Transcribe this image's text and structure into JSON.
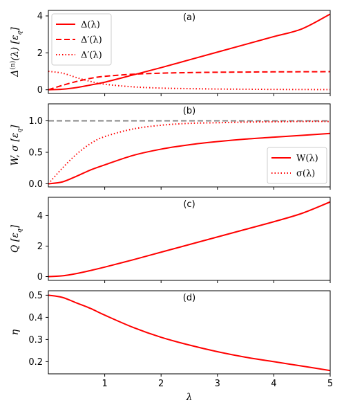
{
  "chart_data": [
    {
      "type": "line",
      "panel_label": "(a)",
      "ylabel": "Δ^(n)(λ) [ε_q]",
      "ylabel_parts": {
        "main": "Δ",
        "sup": "(n)",
        "arg": "(λ) [ε",
        "sub": "q",
        "close": "]"
      },
      "xlim": [
        0,
        5
      ],
      "ylim": [
        -0.2,
        4.3
      ],
      "yticks": [
        0,
        2,
        4
      ],
      "yticklabels": [
        "0",
        "2",
        "4"
      ],
      "grid": false,
      "legend": {
        "placement": "top-left"
      },
      "series": [
        {
          "name": "Δ(λ)",
          "style": "solid",
          "color": "#ff0000",
          "x": [
            0,
            0.25,
            0.5,
            0.75,
            1,
            1.5,
            2,
            2.5,
            3,
            3.5,
            4,
            4.5,
            5
          ],
          "y": [
            0,
            0.03,
            0.12,
            0.26,
            0.41,
            0.8,
            1.2,
            1.62,
            2.04,
            2.46,
            2.88,
            3.3,
            4.1
          ]
        },
        {
          "name": "Δ′(λ)",
          "style": "dashed",
          "color": "#ff0000",
          "x": [
            0,
            0.25,
            0.5,
            0.75,
            1,
            1.5,
            2,
            2.5,
            3,
            3.5,
            4,
            4.5,
            5
          ],
          "y": [
            0,
            0.24,
            0.45,
            0.62,
            0.73,
            0.84,
            0.9,
            0.93,
            0.95,
            0.96,
            0.97,
            0.975,
            0.98
          ]
        },
        {
          "name": "Δ′(λ)",
          "style": "dotted",
          "color": "#ff0000",
          "x": [
            0,
            0.25,
            0.5,
            0.75,
            1,
            1.5,
            2,
            2.5,
            3,
            3.5,
            4,
            4.5,
            5
          ],
          "y": [
            1.0,
            0.9,
            0.66,
            0.45,
            0.3,
            0.16,
            0.09,
            0.06,
            0.04,
            0.03,
            0.02,
            0.015,
            0.01
          ]
        }
      ]
    },
    {
      "type": "line",
      "panel_label": "(b)",
      "ylabel": "W, σ [ε_q]",
      "ylabel_parts": {
        "main": "W, σ [ε",
        "sub": "q",
        "close": "]"
      },
      "xlim": [
        0,
        5
      ],
      "ylim": [
        -0.05,
        1.27
      ],
      "yticks": [
        0,
        0.5,
        1.0
      ],
      "yticklabels": [
        "0.0",
        "0.5",
        "1.0"
      ],
      "grid": false,
      "legend": {
        "placement": "bottom-right"
      },
      "reference_line": {
        "y": 1.0,
        "style": "dashed",
        "color": "#808080"
      },
      "series": [
        {
          "name": "W(λ)",
          "style": "solid",
          "color": "#ff0000",
          "x": [
            0,
            0.25,
            0.5,
            0.75,
            1,
            1.5,
            2,
            2.5,
            3,
            3.5,
            4,
            4.5,
            5
          ],
          "y": [
            0,
            0.03,
            0.12,
            0.22,
            0.3,
            0.45,
            0.55,
            0.62,
            0.67,
            0.71,
            0.74,
            0.77,
            0.8
          ]
        },
        {
          "name": "σ(λ)",
          "style": "dotted",
          "color": "#ff0000",
          "x": [
            0,
            0.25,
            0.5,
            0.75,
            1,
            1.5,
            2,
            2.5,
            3,
            3.5,
            4,
            4.5,
            5
          ],
          "y": [
            0,
            0.25,
            0.47,
            0.64,
            0.75,
            0.87,
            0.93,
            0.96,
            0.97,
            0.98,
            0.985,
            0.99,
            0.99
          ]
        }
      ]
    },
    {
      "type": "line",
      "panel_label": "(c)",
      "ylabel": "Q [ε_q]",
      "ylabel_parts": {
        "main": "Q [ε",
        "sub": "q",
        "close": "]"
      },
      "xlim": [
        0,
        5
      ],
      "ylim": [
        -0.25,
        5.2
      ],
      "yticks": [
        0,
        2,
        4
      ],
      "yticklabels": [
        "0",
        "2",
        "4"
      ],
      "grid": false,
      "series": [
        {
          "name": "",
          "style": "solid",
          "color": "#ff0000",
          "x": [
            0,
            0.25,
            0.5,
            0.75,
            1,
            1.5,
            2,
            2.5,
            3,
            3.5,
            4,
            4.5,
            5
          ],
          "y": [
            0,
            0.05,
            0.2,
            0.4,
            0.62,
            1.1,
            1.6,
            2.1,
            2.6,
            3.1,
            3.6,
            4.15,
            4.9
          ]
        }
      ]
    },
    {
      "type": "line",
      "panel_label": "(d)",
      "ylabel": "η",
      "xlabel": "λ",
      "xlim": [
        0,
        5
      ],
      "ylim": [
        0.145,
        0.52
      ],
      "yticks": [
        0.2,
        0.3,
        0.4,
        0.5
      ],
      "yticklabels": [
        "0.2",
        "0.3",
        "0.4",
        "0.5"
      ],
      "xticks": [
        1,
        2,
        3,
        4,
        5
      ],
      "xticklabels": [
        "1",
        "2",
        "3",
        "4",
        "5"
      ],
      "grid": false,
      "series": [
        {
          "name": "",
          "style": "solid",
          "color": "#ff0000",
          "x": [
            0,
            0.25,
            0.5,
            0.75,
            1,
            1.5,
            2,
            2.5,
            3,
            3.5,
            4,
            4.5,
            5
          ],
          "y": [
            0.5,
            0.49,
            0.465,
            0.44,
            0.41,
            0.355,
            0.31,
            0.275,
            0.245,
            0.22,
            0.2,
            0.18,
            0.16
          ]
        }
      ]
    }
  ]
}
